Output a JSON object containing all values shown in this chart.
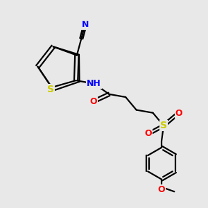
{
  "background_color": "#e8e8e8",
  "atom_colors": {
    "C": "#000000",
    "N": "#0000ff",
    "O": "#ff0000",
    "S": "#cccc00",
    "H": "#808080"
  },
  "bond_color": "#000000",
  "bond_width": 1.6,
  "figure_size": [
    3.0,
    3.0
  ],
  "dpi": 100,
  "xlim": [
    0,
    10
  ],
  "ylim": [
    0,
    10
  ]
}
